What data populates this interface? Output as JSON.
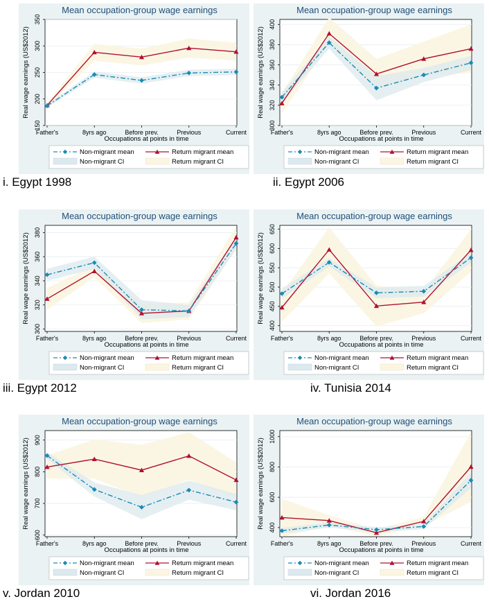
{
  "colors": {
    "panel_bg": "#eaf2f3",
    "nonmigrant": "#1a8ab4",
    "nonmigrant_ci": "#dce9ee",
    "return": "#b01030",
    "return_ci": "#fbf5e2"
  },
  "legend": {
    "nonmigrant_mean": "Non-migrant mean",
    "return_mean": "Return migrant mean",
    "nonmigrant_ci": "Non-migrant CI",
    "return_ci": "Return migrant CI"
  },
  "chart_data": [
    {
      "type": "line",
      "caption": "i. Egypt 1998",
      "title": "Mean occupation-group wage earnings",
      "xlabel": "Occupations at points in time",
      "ylabel": "Real wage earnings (US$2012)",
      "categories": [
        "Father's",
        "8yrs ago",
        "Before prev.",
        "Previous",
        "Current"
      ],
      "yticks": [
        150,
        200,
        250,
        300,
        350
      ],
      "ylim": [
        150,
        350
      ],
      "series": [
        {
          "name": "Non-migrant mean",
          "values": [
            187,
            246,
            235,
            249,
            251
          ],
          "ci_low": [
            184,
            240,
            229,
            243,
            245
          ],
          "ci_high": [
            190,
            252,
            241,
            255,
            257
          ]
        },
        {
          "name": "Return migrant mean",
          "values": [
            188,
            288,
            279,
            296,
            289
          ],
          "ci_low": [
            184,
            272,
            263,
            278,
            272
          ],
          "ci_high": [
            192,
            304,
            295,
            314,
            306
          ]
        }
      ]
    },
    {
      "type": "line",
      "caption": "ii. Egypt 2006",
      "title": "Mean occupation-group wage earnings",
      "xlabel": "Occupations at points in time",
      "ylabel": "Real wage earnings (US$2012)",
      "categories": [
        "Father's",
        "8yrs ago",
        "Before prev.",
        "Previous",
        "Current"
      ],
      "yticks": [
        300,
        320,
        340,
        360,
        380,
        400
      ],
      "ylim": [
        300,
        405
      ],
      "series": [
        {
          "name": "Non-migrant mean",
          "values": [
            328,
            382,
            337,
            350,
            362
          ],
          "ci_low": [
            323,
            376,
            325,
            343,
            355
          ],
          "ci_high": [
            333,
            388,
            349,
            357,
            369
          ]
        },
        {
          "name": "Return migrant mean",
          "values": [
            322,
            391,
            351,
            366,
            376
          ],
          "ci_low": [
            312,
            381,
            336,
            349,
            352
          ],
          "ci_high": [
            332,
            407,
            366,
            383,
            400
          ]
        }
      ]
    },
    {
      "type": "line",
      "caption": "iii. Egypt 2012",
      "title": "Mean occupation-group wage earnings",
      "xlabel": "Occupations at points in time",
      "ylabel": "Real wage earnings (US$2012)",
      "categories": [
        "Father's",
        "8yrs ago",
        "Before prev.",
        "Previous",
        "Current"
      ],
      "yticks": [
        300,
        320,
        340,
        360,
        380
      ],
      "ylim": [
        298,
        386
      ],
      "series": [
        {
          "name": "Non-migrant mean",
          "values": [
            345,
            355,
            316,
            315,
            371
          ],
          "ci_low": [
            340,
            350,
            308,
            310,
            366
          ],
          "ci_high": [
            350,
            360,
            324,
            320,
            376
          ]
        },
        {
          "name": "Return migrant mean",
          "values": [
            325,
            348,
            313,
            315,
            376
          ],
          "ci_low": [
            316,
            343,
            305,
            308,
            366
          ],
          "ci_high": [
            334,
            353,
            321,
            322,
            385
          ]
        }
      ]
    },
    {
      "type": "line",
      "caption": "iv. Tunisia 2014",
      "title": "Mean occupation-group wage earnings",
      "xlabel": "Occupations at points in time",
      "ylabel": "Real wage earnings (US$2012)",
      "categories": [
        "Father's",
        "8yrs ago",
        "Before prev.",
        "Previous",
        "Current"
      ],
      "yticks": [
        400,
        450,
        500,
        550,
        600,
        650
      ],
      "ylim": [
        385,
        660
      ],
      "series": [
        {
          "name": "Non-migrant mean",
          "values": [
            483,
            564,
            485,
            489,
            576
          ],
          "ci_low": [
            470,
            553,
            471,
            475,
            563
          ],
          "ci_high": [
            496,
            575,
            499,
            503,
            589
          ]
        },
        {
          "name": "Return migrant mean",
          "values": [
            447,
            597,
            451,
            461,
            596
          ],
          "ci_low": [
            410,
            535,
            398,
            432,
            540
          ],
          "ci_high": [
            484,
            655,
            504,
            490,
            650
          ]
        }
      ]
    },
    {
      "type": "line",
      "caption": "v. Jordan 2010",
      "title": "Mean occupation-group wage earnings",
      "xlabel": "Occupations at points in time",
      "ylabel": "Real wage earnings (US$2012)",
      "categories": [
        "Father's",
        "8yrs ago",
        "Before prev.",
        "Previous",
        "Current"
      ],
      "yticks": [
        600,
        700,
        800,
        900
      ],
      "ylim": [
        595,
        930
      ],
      "series": [
        {
          "name": "Non-migrant mean",
          "values": [
            851,
            744,
            688,
            742,
            704
          ],
          "ci_low": [
            840,
            722,
            650,
            712,
            678
          ],
          "ci_high": [
            862,
            766,
            726,
            772,
            730
          ]
        },
        {
          "name": "Return migrant mean",
          "values": [
            815,
            840,
            805,
            850,
            774
          ],
          "ci_low": [
            778,
            778,
            720,
            775,
            718
          ],
          "ci_high": [
            852,
            902,
            885,
            925,
            830
          ]
        }
      ]
    },
    {
      "type": "line",
      "caption": "vi. Jordan 2016",
      "title": "Mean occupation-group wage earnings",
      "xlabel": "Occupations at points in time",
      "ylabel": "Real wage earnings (US$2012)",
      "categories": [
        "Father's",
        "8yrs ago",
        "Before prev.",
        "Previous",
        "Current"
      ],
      "yticks": [
        400,
        600,
        800,
        1000
      ],
      "ylim": [
        340,
        1040
      ],
      "series": [
        {
          "name": "Non-migrant mean",
          "values": [
            379,
            417,
            386,
            407,
            712
          ],
          "ci_low": [
            360,
            400,
            370,
            390,
            660
          ],
          "ci_high": [
            398,
            434,
            402,
            424,
            764
          ]
        },
        {
          "name": "Return migrant mean",
          "values": [
            466,
            446,
            366,
            441,
            801
          ],
          "ci_low": [
            340,
            410,
            345,
            410,
            570
          ],
          "ci_high": [
            590,
            482,
            387,
            472,
            1030
          ]
        }
      ]
    }
  ]
}
